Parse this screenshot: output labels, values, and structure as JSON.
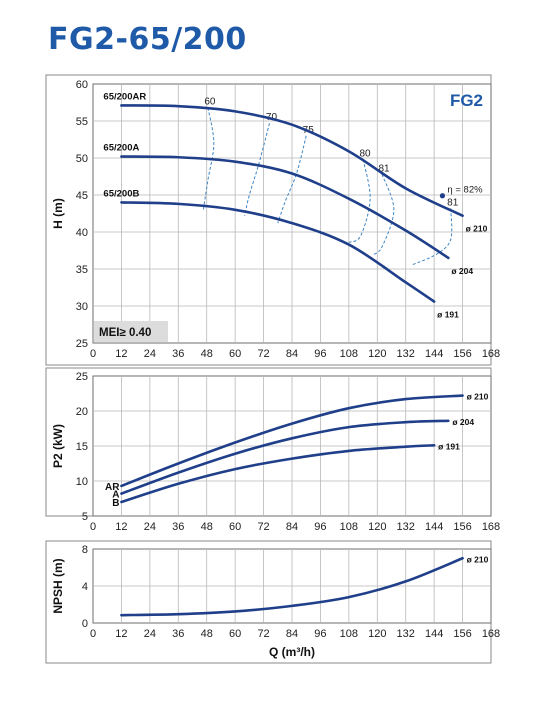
{
  "page": {
    "title": "FG2-65/200"
  },
  "colors": {
    "curve": "#1f3f8a",
    "iso": "#3e86c4",
    "grid": "#b8b8b8",
    "title": "#1f5aa8"
  },
  "chart_data": [
    {
      "type": "line",
      "id": "head",
      "xlabel": "",
      "ylabel": "H (m)",
      "xlim": [
        0,
        168
      ],
      "ylim": [
        25,
        60
      ],
      "xticks": [
        "0",
        "12",
        "24",
        "36",
        "48",
        "60",
        "72",
        "84",
        "96",
        "108",
        "120",
        "132",
        "144",
        "156",
        "168"
      ],
      "yticks": [
        "25",
        "30",
        "35",
        "40",
        "45",
        "50",
        "55",
        "60"
      ],
      "grid": true,
      "badge": "FG2",
      "mei_label": "MEI≥ 0.40",
      "series": [
        {
          "name": "65/200AR",
          "end_label": "ø 210",
          "points": [
            [
              12,
              57.1
            ],
            [
              36,
              57.0
            ],
            [
              60,
              56.3
            ],
            [
              84,
              54.5
            ],
            [
              108,
              50.9
            ],
            [
              132,
              45.9
            ],
            [
              156,
              42.2
            ]
          ]
        },
        {
          "name": "65/200A",
          "end_label": "ø 204",
          "points": [
            [
              12,
              50.2
            ],
            [
              36,
              50.1
            ],
            [
              60,
              49.5
            ],
            [
              84,
              47.9
            ],
            [
              108,
              44.5
            ],
            [
              132,
              40.2
            ],
            [
              150,
              36.5
            ]
          ]
        },
        {
          "name": "65/200B",
          "end_label": "ø 191",
          "points": [
            [
              12,
              44.0
            ],
            [
              36,
              43.8
            ],
            [
              60,
              43.0
            ],
            [
              84,
              41.2
            ],
            [
              108,
              38.3
            ],
            [
              132,
              33.2
            ],
            [
              144,
              30.6
            ]
          ]
        }
      ],
      "efficiency_curves": [
        {
          "label": "60",
          "points": [
            [
              48.5,
              56.8
            ],
            [
              51,
              52
            ],
            [
              48.5,
              47
            ],
            [
              46.5,
              42.8
            ]
          ]
        },
        {
          "label": "70",
          "points": [
            [
              74.5,
              54.7
            ],
            [
              70,
              49.2
            ],
            [
              66,
              45
            ],
            [
              64,
              42.2
            ]
          ]
        },
        {
          "label": "75",
          "points": [
            [
              90,
              53
            ],
            [
              86,
              48
            ],
            [
              81,
              44
            ],
            [
              78,
              41.2
            ]
          ]
        },
        {
          "label": "80",
          "points": [
            [
              114,
              49.8
            ],
            [
              117,
              44.5
            ],
            [
              113,
              39.5
            ],
            [
              108,
              38.6
            ]
          ]
        },
        {
          "label": "81",
          "points": [
            [
              122,
              47.8
            ],
            [
              127,
              43
            ],
            [
              122,
              38
            ],
            [
              118,
              36.9
            ]
          ]
        },
        {
          "label": "81",
          "points": [
            [
              151,
              43.2
            ],
            [
              151,
              39
            ],
            [
              145,
              37
            ],
            [
              135,
              35.6
            ]
          ]
        }
      ],
      "efficiency_point": {
        "x": 147.5,
        "y": 44.9,
        "label": "η = 82%"
      }
    },
    {
      "type": "line",
      "id": "power",
      "xlabel": "",
      "ylabel": "P2 (kW)",
      "xlim": [
        0,
        168
      ],
      "ylim": [
        5,
        25
      ],
      "xticks": [
        "0",
        "12",
        "24",
        "36",
        "48",
        "60",
        "72",
        "84",
        "96",
        "108",
        "120",
        "132",
        "144",
        "156",
        "168"
      ],
      "yticks": [
        "5",
        "10",
        "15",
        "20",
        "25"
      ],
      "grid": true,
      "series": [
        {
          "name": "AR",
          "end_label": "ø 210",
          "points": [
            [
              12,
              9.3
            ],
            [
              36,
              12.5
            ],
            [
              60,
              15.5
            ],
            [
              84,
              18.2
            ],
            [
              108,
              20.4
            ],
            [
              132,
              21.7
            ],
            [
              156,
              22.2
            ]
          ]
        },
        {
          "name": "A",
          "end_label": "ø 204",
          "points": [
            [
              12,
              8.2
            ],
            [
              36,
              11.2
            ],
            [
              60,
              13.9
            ],
            [
              84,
              16.1
            ],
            [
              108,
              17.7
            ],
            [
              132,
              18.4
            ],
            [
              150,
              18.6
            ]
          ]
        },
        {
          "name": "B",
          "end_label": "ø 191",
          "points": [
            [
              12,
              7.0
            ],
            [
              36,
              9.6
            ],
            [
              60,
              11.7
            ],
            [
              84,
              13.2
            ],
            [
              108,
              14.3
            ],
            [
              132,
              14.9
            ],
            [
              144,
              15.1
            ]
          ]
        }
      ]
    },
    {
      "type": "line",
      "id": "npsh",
      "xlabel": "Q (m³/h)",
      "ylabel": "NPSH (m)",
      "xlim": [
        0,
        168
      ],
      "ylim": [
        0,
        8
      ],
      "xticks": [
        "0",
        "12",
        "24",
        "36",
        "48",
        "60",
        "72",
        "84",
        "96",
        "108",
        "120",
        "132",
        "144",
        "156",
        "168"
      ],
      "yticks": [
        "0",
        "4",
        "8"
      ],
      "grid": true,
      "series": [
        {
          "name": "",
          "end_label": "ø 210",
          "points": [
            [
              12,
              0.85
            ],
            [
              36,
              0.95
            ],
            [
              60,
              1.25
            ],
            [
              84,
              1.85
            ],
            [
              108,
              2.8
            ],
            [
              132,
              4.5
            ],
            [
              156,
              7.0
            ]
          ]
        }
      ]
    }
  ]
}
